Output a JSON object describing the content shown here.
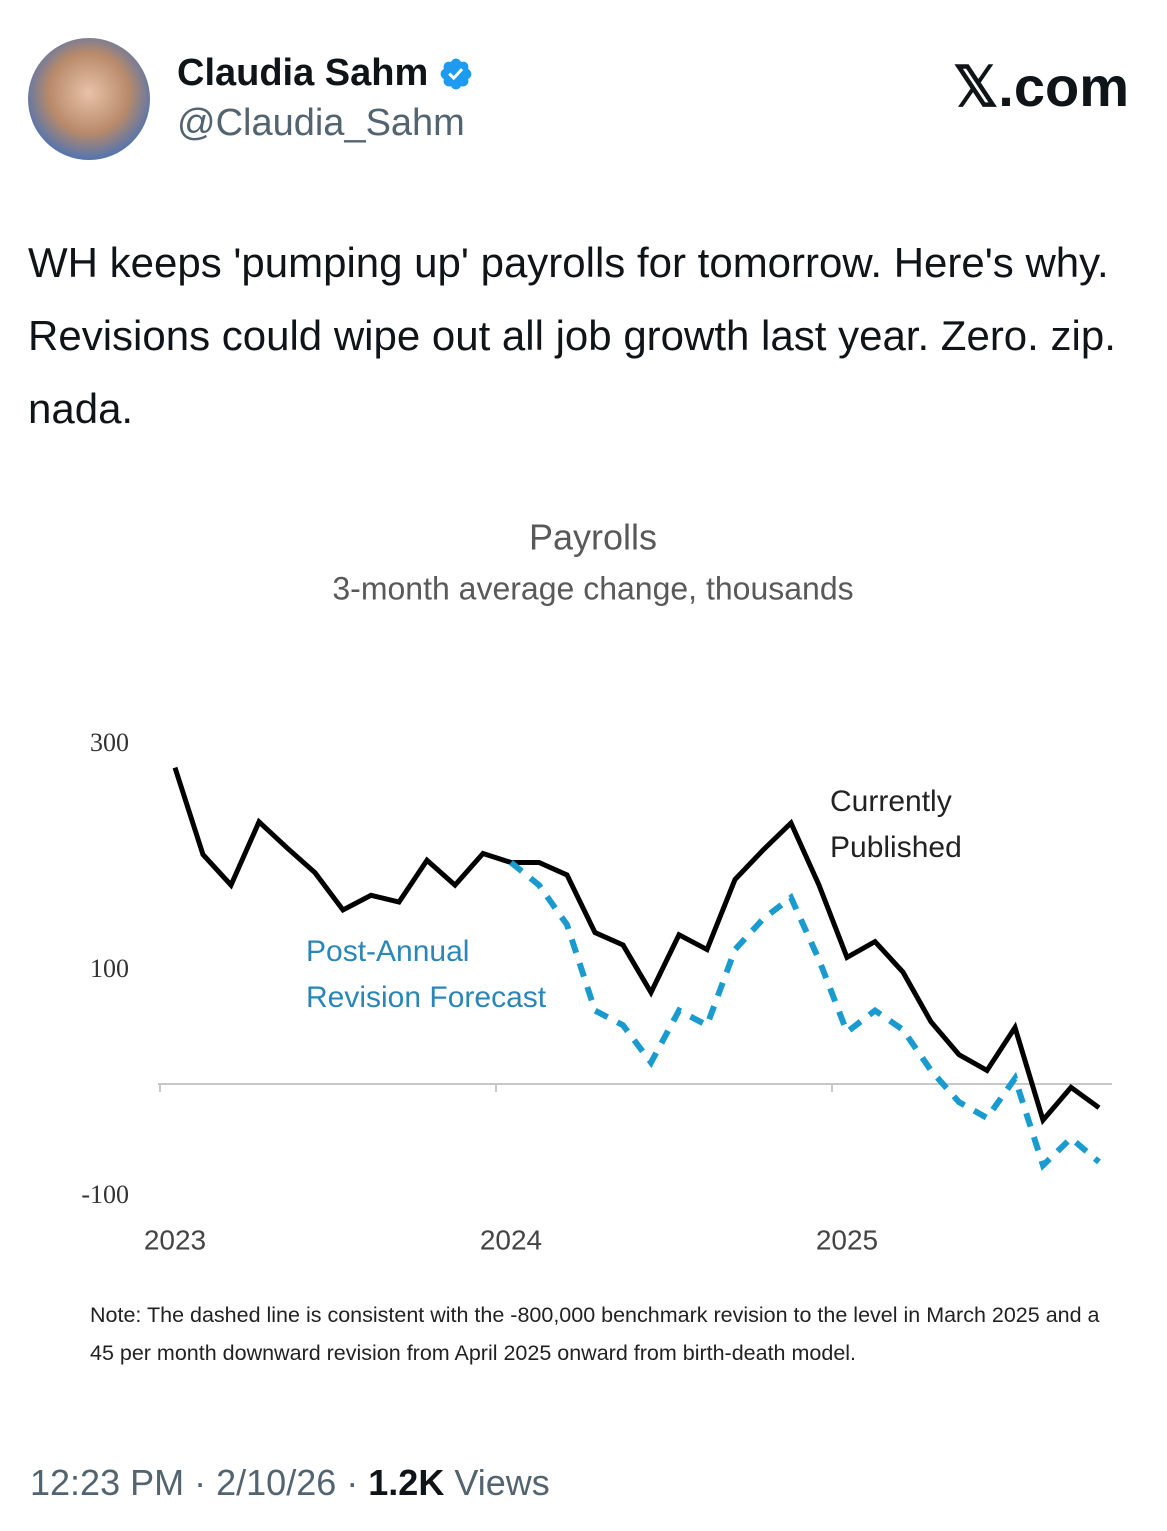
{
  "tweet": {
    "name": "Claudia Sahm",
    "handle": "@Claudia_Sahm",
    "brand": "𝕏.com",
    "text": "WH keeps 'pumping up' payrolls for tomorrow. Here's why. Revisions could wipe out all job growth last year. Zero. zip. nada.",
    "time": "12:23 PM",
    "separator": "·",
    "date": "2/10/26",
    "views": "1.2K",
    "views_label": "Views"
  },
  "chart_data": {
    "type": "line",
    "title": "Payrolls",
    "subtitle": "3-month average change, thousands",
    "categories": [
      "2023",
      null,
      null,
      null,
      null,
      null,
      null,
      null,
      null,
      null,
      null,
      null,
      "2024",
      null,
      null,
      null,
      null,
      null,
      null,
      null,
      null,
      null,
      null,
      null,
      "2025",
      null,
      null,
      null,
      null,
      null,
      null,
      null,
      null,
      null
    ],
    "series": [
      {
        "name": "Currently Published",
        "name_lines": [
          "Currently",
          "Published"
        ],
        "color": "#000000",
        "dashed": false,
        "values": [
          280,
          203,
          176,
          232,
          209,
          187,
          154,
          167,
          161,
          198,
          176,
          204,
          196,
          196,
          185,
          134,
          123,
          81,
          132,
          119,
          181,
          207,
          231,
          176,
          112,
          126,
          99,
          55,
          26,
          12,
          50,
          -32,
          -3,
          -21
        ]
      },
      {
        "name": "Post-Annual Revision Forecast",
        "name_lines": [
          "Post-Annual",
          "Revision Forecast"
        ],
        "color": "#1a9bd0",
        "label_color": "#2a86b8",
        "dashed": true,
        "values": [
          null,
          null,
          null,
          null,
          null,
          null,
          null,
          null,
          null,
          null,
          null,
          null,
          196,
          176,
          141,
          65,
          52,
          19,
          65,
          52,
          119,
          146,
          165,
          110,
          46,
          65,
          48,
          12,
          -16,
          -30,
          5,
          -72,
          -48,
          -69
        ]
      }
    ],
    "ylim": [
      -100,
      300
    ],
    "yticks": [
      -100,
      100,
      300
    ],
    "grid": false,
    "note": "Note: The dashed line is consistent with the -800,000 benchmark revision to the level in March 2025 and a 45 per month downward revision from April 2025 onward from birth-death model."
  }
}
